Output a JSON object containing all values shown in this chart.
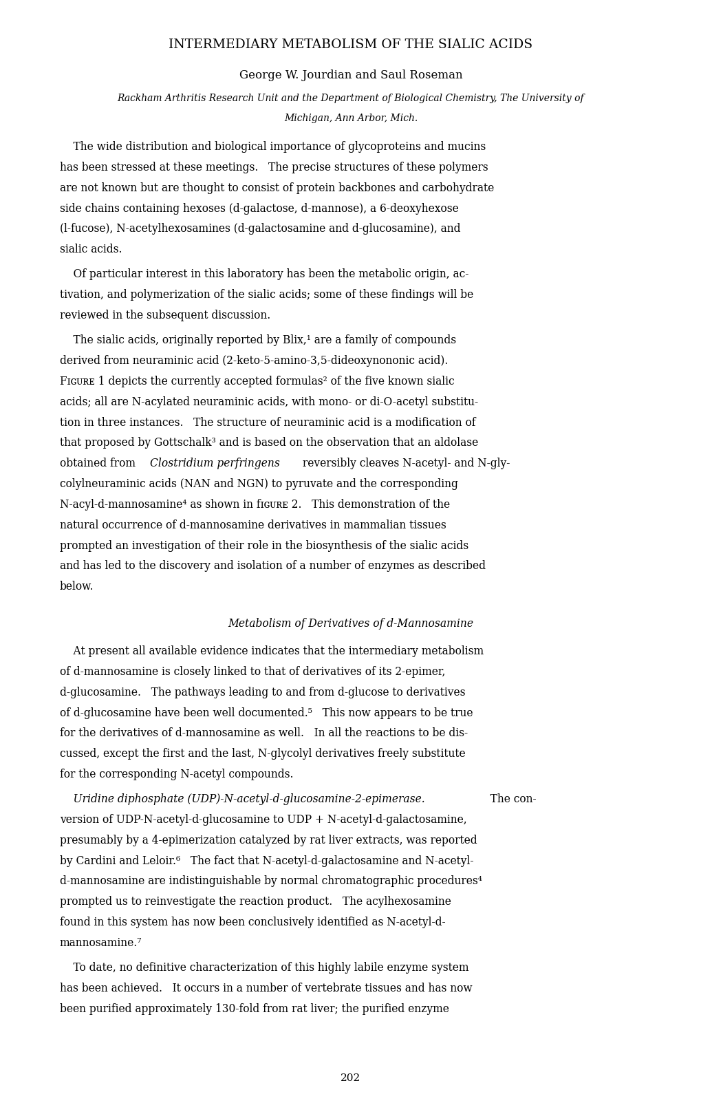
{
  "background_color": "#ffffff",
  "title": "INTERMEDIARY METABOLISM OF THE SIALIC ACIDS",
  "author": "George W. Jourdian and Saul Roseman",
  "affiliation_line1": "Rackham Arthritis Research Unit and the Department of Biological Chemistry, The University of",
  "affiliation_line2": "Michigan, Ann Arbor, Mich.",
  "page_number": "202",
  "paragraphs": [
    {
      "indent": true,
      "text": "The wide distribution and biological importance of glycoproteins and mucins has been stressed at these meetings.   The precise structures of these polymers are not known but are thought to consist of protein backbones and carbohydrate side chains containing hexoses (ᴅ-galactose, ᴅ-mannose), a 6-deoxyhexose (ʟ-fucose), N-acetylhexosamines (ᴅ-galactosamine and ᴅ-glucosamine), and sialic acids."
    },
    {
      "indent": true,
      "text": "Of particular interest in this laboratory has been the metabolic origin, ac-tivation, and polymerization of the sialic acids; some of these findings will be reviewed in the subsequent discussion."
    },
    {
      "indent": true,
      "text": "The sialic acids, originally reported by Blix,¹ are a family of compounds derived from neuraminic acid (2-keto-5-amino-3,5-dideoxynononic acid). Fɪɢᴜʀᴇ 1 depicts the currently accepted formulas² of the five known sialic acids; all are N-acylated neuraminic acids, with mono- or di-O-acetyl substitution in three instances.   The structure of neuraminic acid is a modification of that proposed by Gottschalk³ and is based on the observation that an aldolase obtained from Clostridium perfringens reversibly cleaves N-acetyl- and N-gly-colylneuraminic acids (NAN and NGN) to pyruvate and the corresponding N-acyl-ᴅ-mannosamine⁴ as shown in fɪɢᴜʀᴇ 2.   This demonstration of the natural occurrence of ᴅ-mannosamine derivatives in mammalian tissues prompted an investigation of their role in the biosynthesis of the sialic acids and has led to the discovery and isolation of a number of enzymes as described below."
    }
  ],
  "section_title": "Metabolism of Derivatives of ᴅ-Mannosamine",
  "section_paragraphs": [
    {
      "indent": true,
      "text": "At present all available evidence indicates that the intermediary metabolism of ᴅ-mannosamine is closely linked to that of derivatives of its 2-epimer, ᴅ-glucosamine.   The pathways leading to and from ᴅ-glucose to derivatives of ᴅ-glucosamine have been well documented.⁵   This now appears to be true for the derivatives of ᴅ-mannosamine as well.   In all the reactions to be dis-cussed, except the first and the last, N-glycolyl derivatives freely substitute for the corresponding N-acetyl compounds."
    },
    {
      "indent": true,
      "italic_start": "Uridine diphosphate (UDP)-N-acetyl-ᴅ-glucosamine-2-epimerase.",
      "text": "   The con-version of UDP-N-acetyl-ᴅ-glucosamine to UDP + N-acetyl-ᴅ-galactosamine, presumably by a 4-epimerization catalyzed by rat liver extracts, was reported by Cardini and Leloir.⁶   The fact that N-acetyl-ᴅ-galactosamine and N-acetyl-ᴅ-mannosamine are indistinguishable by normal chromatographic procedures⁴ prompted us to reinvestigate the reaction product.   The acylhexosamine found in this system has now been conclusively identified as N-acetyl-ᴅ-mannosamine.⁷"
    },
    {
      "indent": true,
      "text": "To date, no definitive characterization of this highly labile enzyme system has been achieved.   It occurs in a number of vertebrate tissues and has now been purified approximately 130-fold from rat liver; the purified enzyme"
    }
  ]
}
